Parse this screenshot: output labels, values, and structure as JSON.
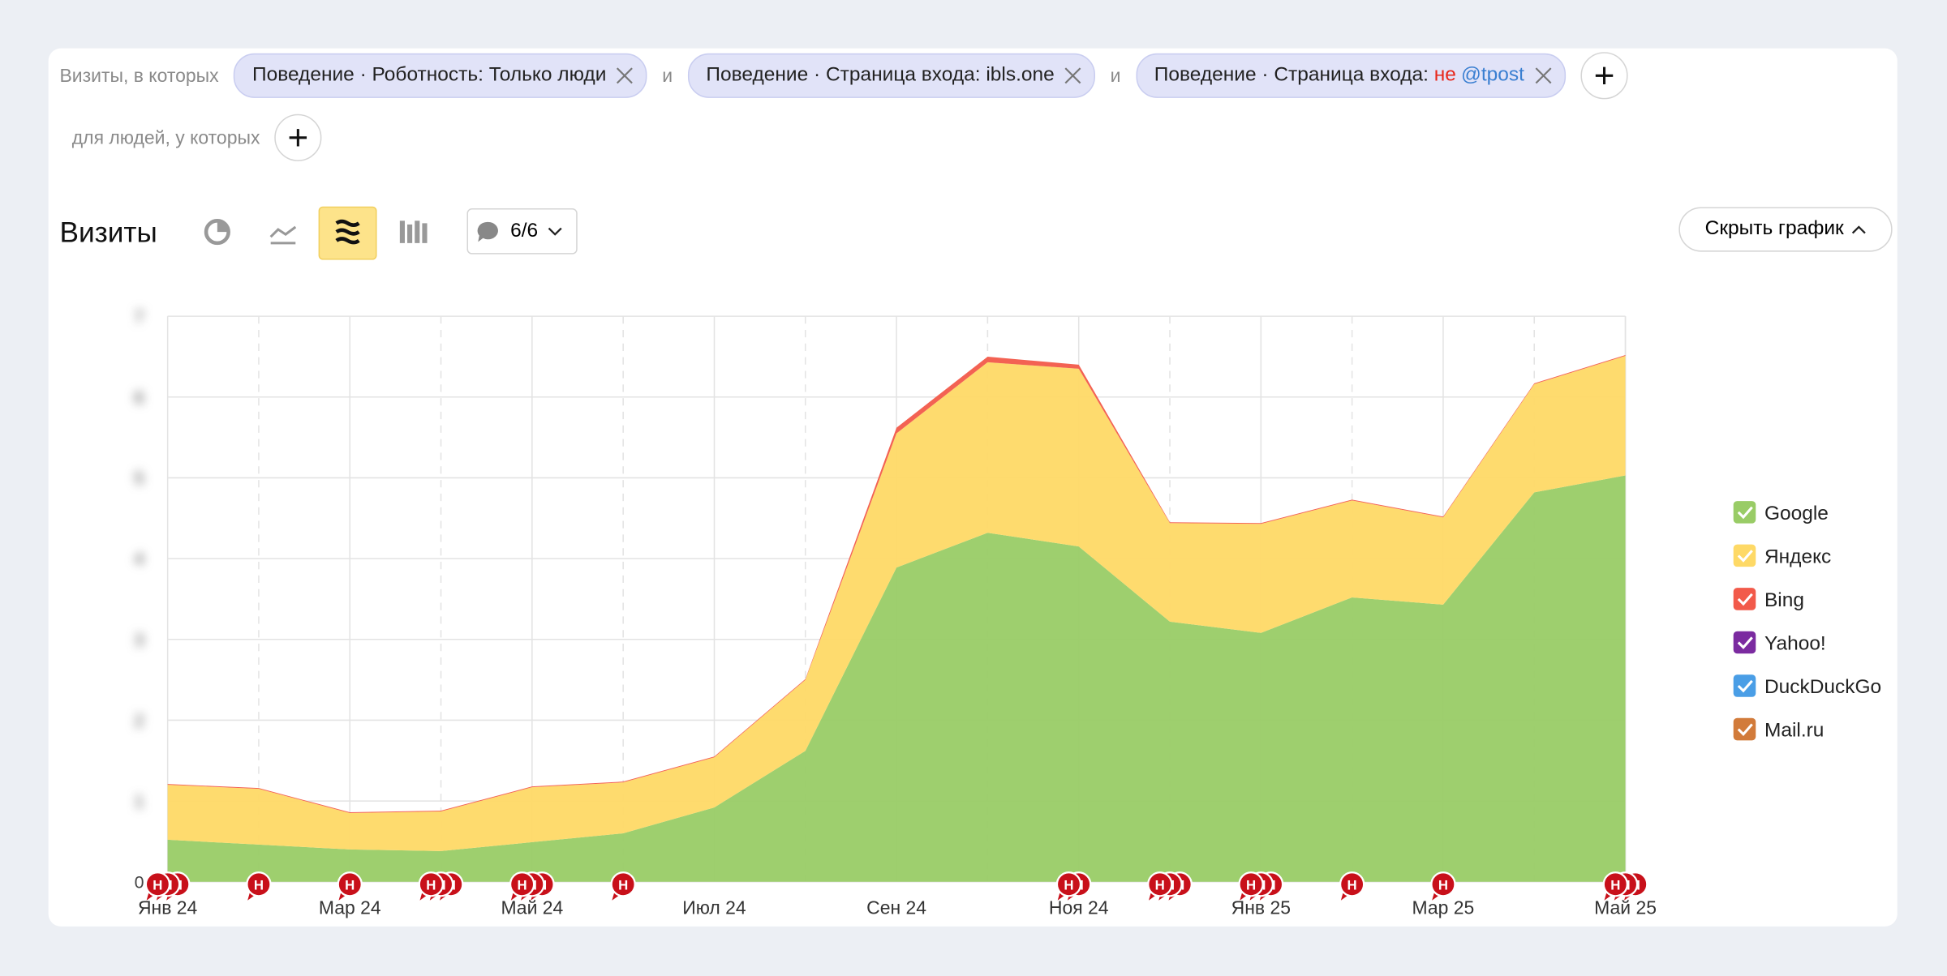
{
  "filters": {
    "label": "Визиты, в которых",
    "joiner": "и",
    "chips": [
      {
        "text": "Поведение · Роботность: Только люди"
      },
      {
        "text": "Поведение · Страница входа: ibls.one"
      },
      {
        "text": "Поведение · Страница входа: ",
        "negation": "не",
        "value": "@tpost"
      }
    ],
    "people_label": "для людей, у которых"
  },
  "toolbar": {
    "title": "Визиты",
    "annotations_count": "6/6",
    "hide_button": "Скрыть график"
  },
  "chart_data": {
    "type": "stacked-area",
    "categories": [
      "Янв 24",
      null,
      "Мар 24",
      null,
      "Май 24",
      null,
      "Июл 24",
      null,
      "Сен 24",
      null,
      "Ноя 24",
      null,
      "Янв 25",
      null,
      "Мар 25",
      null,
      "Май 25"
    ],
    "series": [
      {
        "name": "Google",
        "color": "#99cc66",
        "values": [
          0.52,
          0.46,
          0.4,
          0.38,
          0.49,
          0.6,
          0.92,
          1.62,
          3.89,
          4.32,
          4.15,
          3.22,
          3.08,
          3.52,
          3.43,
          4.82,
          5.03
        ]
      },
      {
        "name": "Яндекс",
        "color": "#fed966",
        "values": [
          0.68,
          0.69,
          0.45,
          0.49,
          0.68,
          0.63,
          0.62,
          0.88,
          1.66,
          2.11,
          2.2,
          1.22,
          1.35,
          1.2,
          1.08,
          1.34,
          1.48
        ]
      },
      {
        "name": "Bing",
        "color": "#f25a4a",
        "values": [
          0.01,
          0.01,
          0.01,
          0.01,
          0.01,
          0.01,
          0.01,
          0.01,
          0.07,
          0.07,
          0.05,
          0.01,
          0.01,
          0.01,
          0.01,
          0.01,
          0.01
        ]
      },
      {
        "name": "Yahoo!",
        "color": "#7b2ba0",
        "values": [
          0,
          0,
          0,
          0,
          0,
          0,
          0,
          0,
          0,
          0,
          0,
          0,
          0,
          0,
          0,
          0,
          0
        ]
      },
      {
        "name": "DuckDuckGo",
        "color": "#4a9ee6",
        "values": [
          0,
          0,
          0,
          0,
          0,
          0,
          0,
          0,
          0,
          0,
          0,
          0,
          0,
          0,
          0,
          0,
          0
        ]
      },
      {
        "name": "Mail.ru",
        "color": "#d27b3a",
        "values": [
          0,
          0,
          0,
          0,
          0,
          0,
          0,
          0,
          0,
          0,
          0,
          0,
          0,
          0,
          0,
          0,
          0
        ]
      }
    ],
    "ylim": [
      0,
      7
    ],
    "yticks": [
      0,
      1,
      2,
      3,
      4,
      5,
      6,
      7
    ],
    "grid": true,
    "notes_label": "Н",
    "notes": [
      {
        "at": 0,
        "count": 3
      },
      {
        "at": 1,
        "count": 1
      },
      {
        "at": 2,
        "count": 1
      },
      {
        "at": 3,
        "count": 3
      },
      {
        "at": 4,
        "count": 3
      },
      {
        "at": 5,
        "count": 1
      },
      {
        "at": 10,
        "count": 2
      },
      {
        "at": 11,
        "count": 3
      },
      {
        "at": 12,
        "count": 3
      },
      {
        "at": 13,
        "count": 1
      },
      {
        "at": 14,
        "count": 1
      },
      {
        "at": 16,
        "count": 3
      }
    ]
  }
}
